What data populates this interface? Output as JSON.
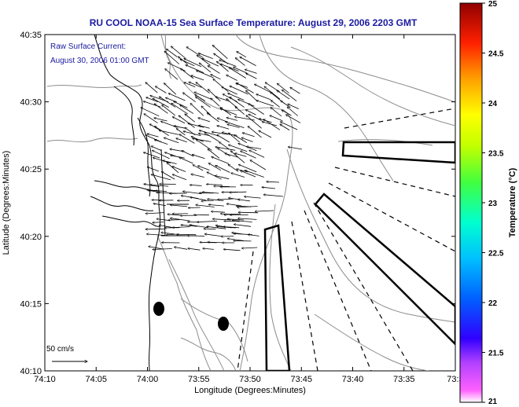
{
  "title": "RU COOL  NOAA-15  Sea Surface Temperature:  August 29, 2006 2203 GMT",
  "current_note": {
    "line1": "Raw Surface Current:",
    "line2": "August 30, 2006 01:00 GMT"
  },
  "scale_label": "50 cm/s",
  "axes": {
    "xlabel": "Longitude (Degrees:Minutes)",
    "ylabel": "Latitude (Degrees:Minutes)",
    "xticks": [
      "74:10",
      "74:05",
      "74:00",
      "73:55",
      "73:50",
      "73:45",
      "73:40",
      "73:35",
      "73:3"
    ],
    "yticks": [
      "40:35",
      "40:30",
      "40:25",
      "40:20",
      "40:15",
      "40:10"
    ]
  },
  "colorbar": {
    "label": "Temperature (°C)",
    "ticks": [
      "25",
      "24.5",
      "24",
      "23.5",
      "23",
      "22.5",
      "22",
      "21.5",
      "21"
    ],
    "range": [
      21,
      25
    ]
  },
  "colors": {
    "title_text": "#1a1aa0",
    "coast": "#000000",
    "bathymetry": "#8c8c8c"
  }
}
